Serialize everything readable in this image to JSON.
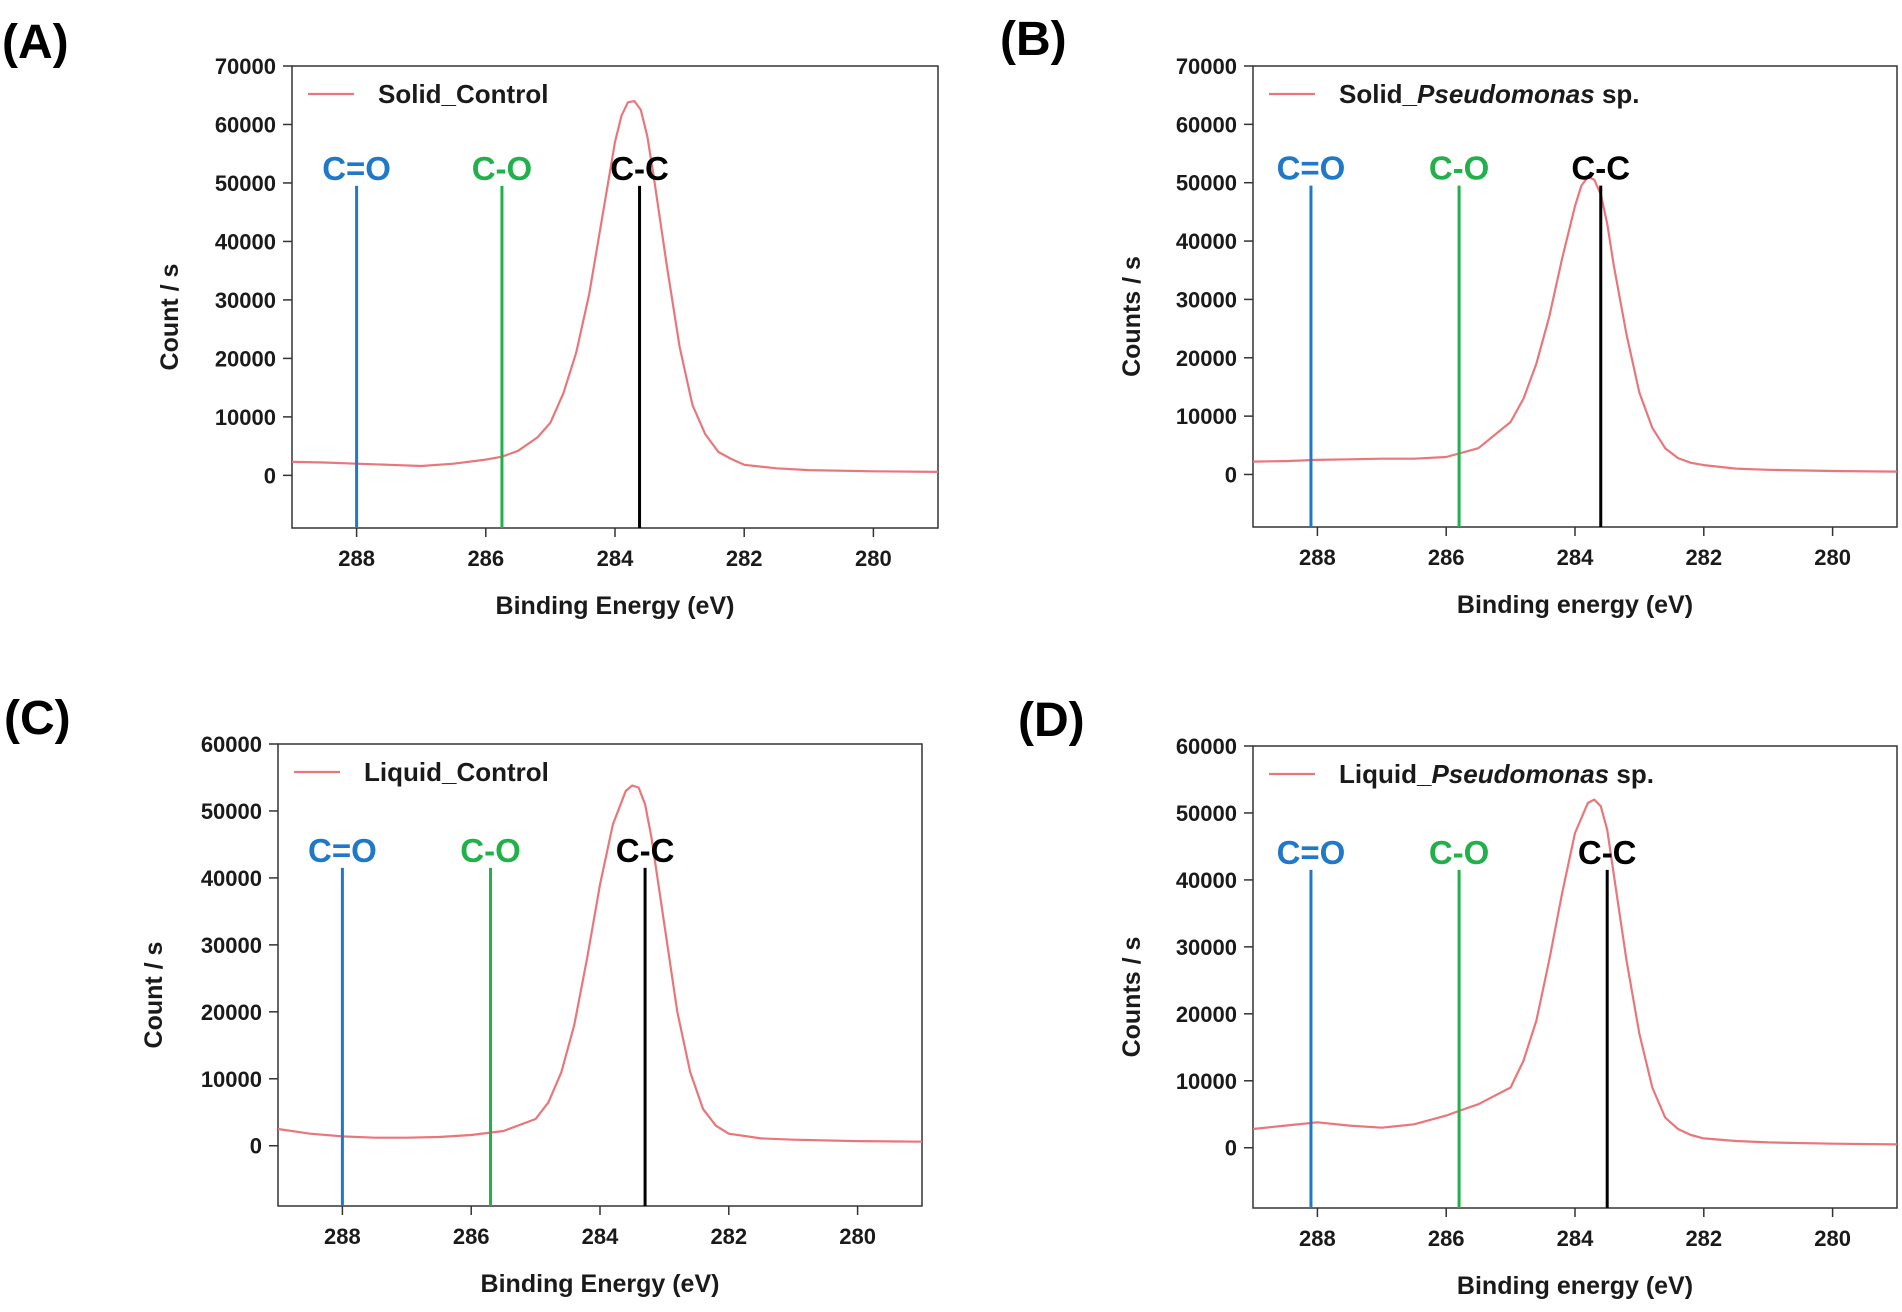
{
  "chart_data": [
    {
      "type": "line",
      "panel_label": "(A)",
      "legend": {
        "prefix": "Solid_",
        "italic": "",
        "suffix": "Control",
        "color": "#e8777b"
      },
      "xlabel": "Binding Energy (eV)",
      "ylabel": "Count / s",
      "xlim": [
        289.0,
        279.0
      ],
      "ylim": [
        -9000,
        70000
      ],
      "xticks": [
        288,
        286,
        284,
        282,
        280
      ],
      "yticks": [
        0,
        10000,
        20000,
        30000,
        40000,
        50000,
        60000,
        70000
      ],
      "markers": [
        {
          "label": "C=O",
          "x": 288.0,
          "top": 49500,
          "color": "#1f78c8"
        },
        {
          "label": "C-O",
          "x": 285.75,
          "top": 49500,
          "color": "#22b04b"
        },
        {
          "label": "C-C",
          "x": 283.62,
          "top": 49500,
          "color": "#000000"
        }
      ],
      "series": [
        {
          "name": "Solid_Control",
          "x": [
            289.0,
            288.5,
            288.0,
            287.5,
            287.0,
            286.5,
            286.0,
            285.75,
            285.5,
            285.2,
            285.0,
            284.8,
            284.6,
            284.4,
            284.2,
            284.0,
            283.9,
            283.8,
            283.7,
            283.6,
            283.5,
            283.4,
            283.2,
            283.0,
            282.8,
            282.6,
            282.4,
            282.2,
            282.0,
            281.5,
            281.0,
            280.0,
            279.0
          ],
          "y": [
            2300,
            2200,
            2000,
            1800,
            1600,
            2000,
            2700,
            3200,
            4200,
            6500,
            9000,
            14000,
            21000,
            31000,
            44000,
            57000,
            61500,
            63800,
            64000,
            62500,
            58000,
            51000,
            36000,
            22000,
            12000,
            7000,
            4000,
            2800,
            1800,
            1200,
            900,
            700,
            600
          ]
        }
      ]
    },
    {
      "type": "line",
      "panel_label": "(B)",
      "legend": {
        "prefix": "Solid_",
        "italic": "Pseudomonas",
        "suffix": " sp.",
        "color": "#e8777b"
      },
      "xlabel": "Binding energy (eV)",
      "ylabel": "Counts / s",
      "xlim": [
        289.0,
        279.0
      ],
      "ylim": [
        -9000,
        70000
      ],
      "xticks": [
        288,
        286,
        284,
        282,
        280
      ],
      "yticks": [
        0,
        10000,
        20000,
        30000,
        40000,
        50000,
        60000,
        70000
      ],
      "markers": [
        {
          "label": "C=O",
          "x": 288.1,
          "top": 49500,
          "color": "#1f78c8"
        },
        {
          "label": "C-O",
          "x": 285.8,
          "top": 49500,
          "color": "#22b04b"
        },
        {
          "label": "C-C",
          "x": 283.6,
          "top": 49500,
          "color": "#000000"
        }
      ],
      "series": [
        {
          "name": "Solid_Pseudomonas sp.",
          "x": [
            289.0,
            288.5,
            288.0,
            287.5,
            287.0,
            286.5,
            286.0,
            285.5,
            285.0,
            284.8,
            284.6,
            284.4,
            284.2,
            284.0,
            283.9,
            283.8,
            283.7,
            283.6,
            283.5,
            283.4,
            283.2,
            283.0,
            282.8,
            282.6,
            282.4,
            282.2,
            282.0,
            281.5,
            281.0,
            280.0,
            279.0
          ],
          "y": [
            2200,
            2300,
            2500,
            2600,
            2700,
            2700,
            3000,
            4500,
            9000,
            13000,
            19000,
            27000,
            37000,
            46000,
            49500,
            51000,
            50500,
            48000,
            43000,
            36000,
            24000,
            14000,
            8000,
            4500,
            2800,
            2000,
            1600,
            1000,
            800,
            600,
            500
          ]
        }
      ]
    },
    {
      "type": "line",
      "panel_label": "(C)",
      "legend": {
        "prefix": "Liquid_",
        "italic": "",
        "suffix": "Control",
        "color": "#e8777b"
      },
      "xlabel": "Binding Energy (eV)",
      "ylabel": "Count / s",
      "xlim": [
        289.0,
        279.0
      ],
      "ylim": [
        -9000,
        60000
      ],
      "xticks": [
        288,
        286,
        284,
        282,
        280
      ],
      "yticks": [
        0,
        10000,
        20000,
        30000,
        40000,
        50000,
        60000
      ],
      "markers": [
        {
          "label": "C=O",
          "x": 288.0,
          "top": 41500,
          "color": "#1f78c8"
        },
        {
          "label": "C-O",
          "x": 285.7,
          "top": 41500,
          "color": "#22b04b"
        },
        {
          "label": "C-C",
          "x": 283.3,
          "top": 41500,
          "color": "#000000"
        }
      ],
      "series": [
        {
          "name": "Liquid_Control",
          "x": [
            289.0,
            288.5,
            288.0,
            287.5,
            287.0,
            286.5,
            286.0,
            285.5,
            285.0,
            284.8,
            284.6,
            284.4,
            284.2,
            284.0,
            283.8,
            283.6,
            283.5,
            283.4,
            283.3,
            283.2,
            283.0,
            282.8,
            282.6,
            282.4,
            282.2,
            282.0,
            281.5,
            281.0,
            280.0,
            279.0
          ],
          "y": [
            2500,
            1800,
            1400,
            1200,
            1200,
            1300,
            1600,
            2200,
            4000,
            6500,
            11000,
            18000,
            28000,
            39000,
            48000,
            53000,
            53800,
            53500,
            51000,
            46000,
            33000,
            20000,
            11000,
            5500,
            3000,
            1800,
            1100,
            900,
            700,
            600
          ]
        }
      ]
    },
    {
      "type": "line",
      "panel_label": "(D)",
      "legend": {
        "prefix": "Liquid_",
        "italic": "Pseudomonas",
        "suffix": " sp.",
        "color": "#e8777b"
      },
      "xlabel": "Binding energy (eV)",
      "ylabel": "Counts / s",
      "xlim": [
        289.0,
        279.0
      ],
      "ylim": [
        -9000,
        60000
      ],
      "xticks": [
        288,
        286,
        284,
        282,
        280
      ],
      "yticks": [
        0,
        10000,
        20000,
        30000,
        40000,
        50000,
        60000
      ],
      "markers": [
        {
          "label": "C=O",
          "x": 288.1,
          "top": 41500,
          "color": "#1f78c8"
        },
        {
          "label": "C-O",
          "x": 285.8,
          "top": 41500,
          "color": "#22b04b"
        },
        {
          "label": "C-C",
          "x": 283.5,
          "top": 41500,
          "color": "#000000"
        }
      ],
      "series": [
        {
          "name": "Liquid_Pseudomonas sp.",
          "x": [
            289.0,
            288.5,
            288.0,
            287.5,
            287.0,
            286.5,
            286.0,
            285.8,
            285.5,
            285.0,
            284.8,
            284.6,
            284.4,
            284.2,
            284.0,
            283.8,
            283.7,
            283.6,
            283.5,
            283.4,
            283.2,
            283.0,
            282.8,
            282.6,
            282.4,
            282.2,
            282.0,
            281.5,
            281.0,
            280.0,
            279.0
          ],
          "y": [
            2800,
            3300,
            3800,
            3300,
            3000,
            3500,
            4800,
            5500,
            6500,
            9000,
            13000,
            19000,
            28000,
            38000,
            47000,
            51500,
            52000,
            51000,
            47500,
            41000,
            28000,
            17000,
            9000,
            4500,
            2800,
            1900,
            1400,
            1000,
            800,
            600,
            500
          ]
        }
      ]
    }
  ]
}
